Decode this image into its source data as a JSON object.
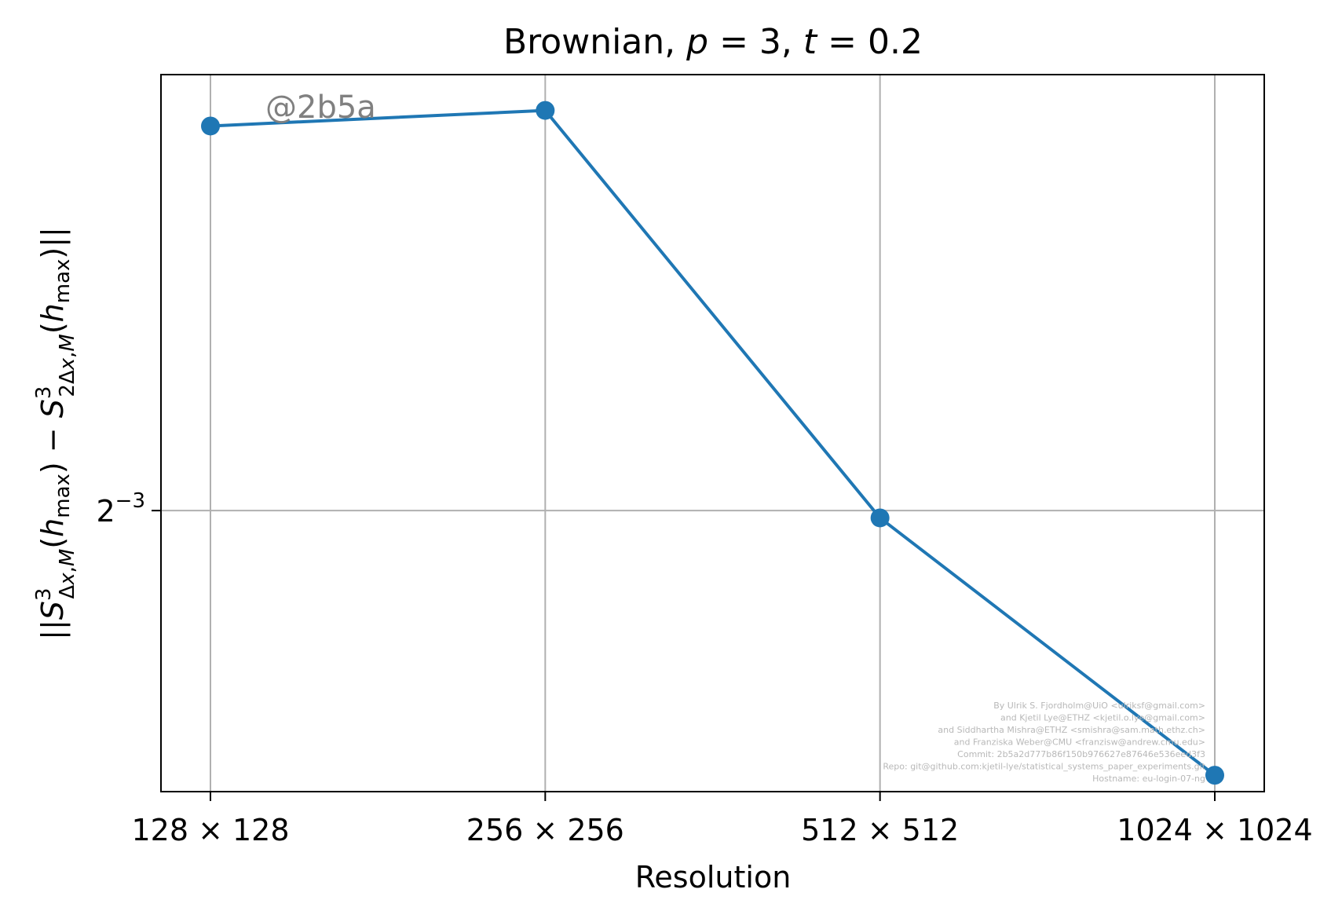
{
  "chart_data": {
    "type": "line",
    "title_parts": {
      "prefix": "Brownian, ",
      "p_var": "p",
      "p_eq": " = 3, ",
      "t_var": "t",
      "t_eq": " = 0.2"
    },
    "xlabel": "Resolution",
    "ylabel": "||S³Δx,M(hmax) − S³2Δx,M(hmax)||",
    "categories": [
      "128 × 128",
      "256 × 256",
      "512 × 512",
      "1024 × 1024"
    ],
    "y_scale": "log2",
    "ylim": [
      0.0739,
      0.2825
    ],
    "y_ticks": [
      {
        "value": 0.125,
        "base": "2",
        "exponent": "−3"
      }
    ],
    "grid": true,
    "series": [
      {
        "values": [
          0.2566,
          0.2642,
          0.1233,
          0.0762
        ],
        "color": "#1f77b4"
      }
    ],
    "annotation": "@2b5a",
    "credits": [
      "By Ulrik S. Fjordholm@UiO <ulriksf@gmail.com>",
      "and Kjetil Lye@ETHZ <kjetil.o.lye@gmail.com>",
      "and Siddhartha Mishra@ETHZ <smishra@sam.math.ethz.ch>",
      "and Franziska Weber@CMU <franzisw@andrew.cmu.edu>",
      "Commit: 2b5a2d777b86f150b976627e87646e536eed3f3",
      "Repo: git@github.com:kjetil-lye/statistical_systems_paper_experiments.git",
      "Hostname: eu-login-07-ng"
    ]
  }
}
